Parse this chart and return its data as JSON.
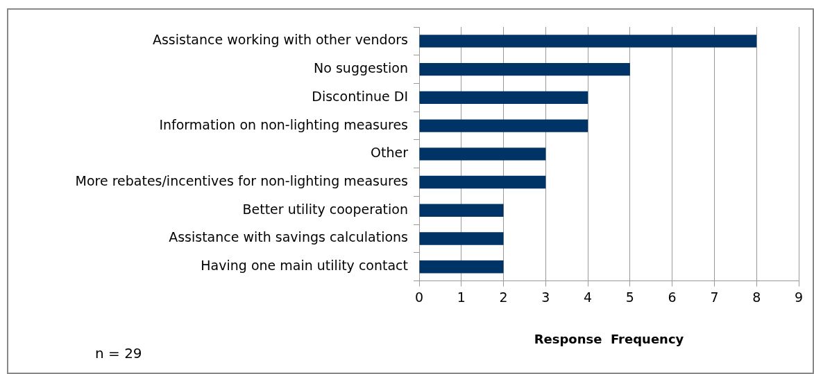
{
  "chart_data": {
    "type": "bar",
    "orientation": "horizontal",
    "categories": [
      "Assistance working with other vendors",
      "No suggestion",
      "Discontinue DI",
      "Information on non-lighting measures",
      "Other",
      "More rebates/incentives for non-lighting measures",
      "Better utility cooperation",
      "Assistance with savings calculations",
      "Having one main utility contact"
    ],
    "values": [
      8,
      5,
      4,
      4,
      3,
      3,
      2,
      2,
      2
    ],
    "color": "#003366",
    "xlim": [
      0,
      9
    ],
    "xticks": [
      0,
      1,
      2,
      3,
      4,
      5,
      6,
      7,
      8,
      9
    ],
    "grid": "x",
    "xlabel": "Response  Frequency",
    "annotations": [
      "n = 29"
    ]
  }
}
